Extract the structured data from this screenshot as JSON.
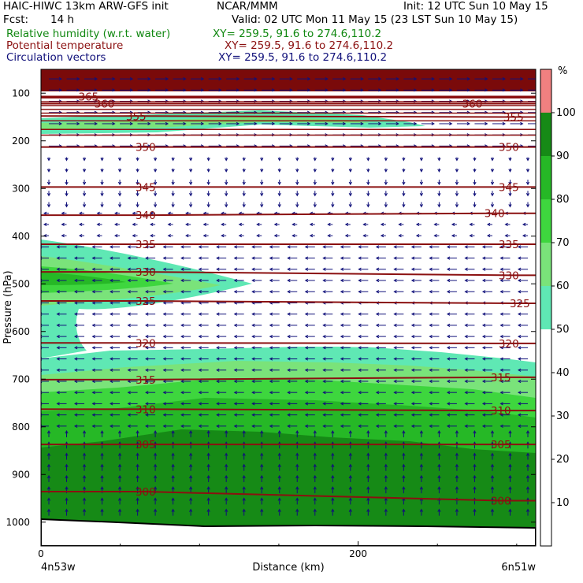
{
  "header": {
    "model": "HAIC-HIWC 13km ARW-GFS init",
    "center": "NCAR/MMM",
    "init": "Init: 12 UTC Sun 10 May 15",
    "fcst_label": "Fcst:",
    "fcst_value": "14 h",
    "valid": "Valid: 02 UTC Mon 11 May 15 (23 LST Sun 10 May 15)"
  },
  "fields": [
    {
      "name": "Relative humidity (w.r.t. water)",
      "coords": "XY= 259.5, 91.6 to 274.6,110.2",
      "color": "#118811"
    },
    {
      "name": "Potential temperature",
      "coords": "XY= 259.5, 91.6 to 274.6,110.2",
      "color": "#8b1010"
    },
    {
      "name": "Circulation vectors",
      "coords": "XY= 259.5, 91.6 to 274.6,110.2",
      "color": "#10107a"
    }
  ],
  "colors": {
    "rh_50": "#5fe8b4",
    "rh_60": "#7ae37a",
    "rh_70": "#3ed63e",
    "rh_80": "#26b826",
    "rh_90": "#168a16",
    "rh_100_top": "#7a0a0a",
    "rh_scale_top": "#f08080",
    "theta": "#8b1010",
    "vectors": "#10107a",
    "terrain": "#000000"
  },
  "chart_data": {
    "type": "cross-section",
    "ylabel": "Pressure (hPa)",
    "xlabel": "Distance (km)",
    "x_start_label": "4n53w",
    "x_end_label": "6n51w",
    "x_ticks": [
      "0",
      "200"
    ],
    "y_ticks": [
      "100",
      "200",
      "300",
      "400",
      "500",
      "600",
      "700",
      "800",
      "900",
      "1000"
    ],
    "ylim": [
      1050,
      50
    ],
    "xlim": [
      0,
      312
    ],
    "colorbar": {
      "unit": "%",
      "ticks": [
        "10",
        "20",
        "30",
        "40",
        "50",
        "60",
        "70",
        "80",
        "90",
        "100"
      ]
    },
    "theta_labels": [
      {
        "v": "365",
        "x": 30,
        "p": 107
      },
      {
        "v": "360",
        "x": 40,
        "p": 122
      },
      {
        "v": "360",
        "x": 272,
        "p": 122
      },
      {
        "v": "355",
        "x": 60,
        "p": 148
      },
      {
        "v": "355",
        "x": 298,
        "p": 150
      },
      {
        "v": "350",
        "x": 66,
        "p": 213
      },
      {
        "v": "350",
        "x": 295,
        "p": 213
      },
      {
        "v": "345",
        "x": 66,
        "p": 297
      },
      {
        "v": "345",
        "x": 295,
        "p": 297
      },
      {
        "v": "340",
        "x": 66,
        "p": 356
      },
      {
        "v": "340",
        "x": 286,
        "p": 352
      },
      {
        "v": "335",
        "x": 66,
        "p": 417
      },
      {
        "v": "335",
        "x": 295,
        "p": 417
      },
      {
        "v": "330",
        "x": 66,
        "p": 475
      },
      {
        "v": "330",
        "x": 295,
        "p": 482
      },
      {
        "v": "325",
        "x": 66,
        "p": 536
      },
      {
        "v": "325",
        "x": 302,
        "p": 541
      },
      {
        "v": "320",
        "x": 66,
        "p": 624
      },
      {
        "v": "320",
        "x": 295,
        "p": 625
      },
      {
        "v": "315",
        "x": 66,
        "p": 701
      },
      {
        "v": "315",
        "x": 290,
        "p": 696
      },
      {
        "v": "310",
        "x": 66,
        "p": 763
      },
      {
        "v": "310",
        "x": 290,
        "p": 766
      },
      {
        "v": "305",
        "x": 66,
        "p": 837
      },
      {
        "v": "305",
        "x": 290,
        "p": 837
      },
      {
        "v": "300",
        "x": 66,
        "p": 936
      },
      {
        "v": "300",
        "x": 290,
        "p": 955
      }
    ]
  }
}
